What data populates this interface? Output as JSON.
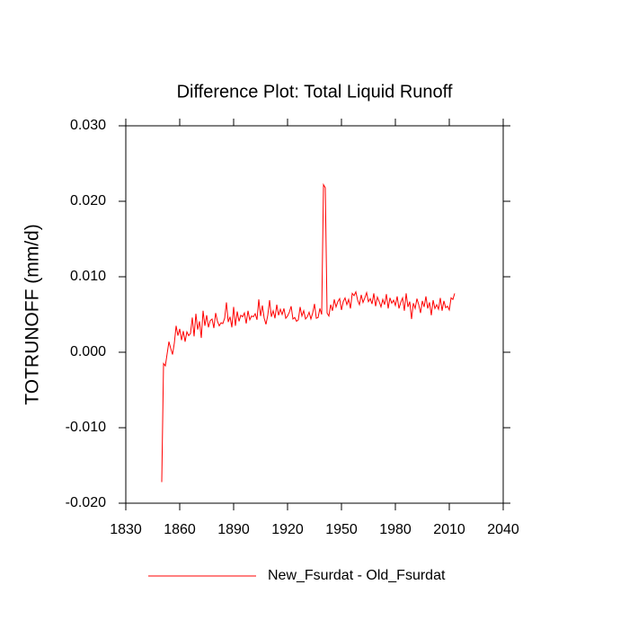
{
  "chart_data": {
    "type": "line",
    "title": "Difference Plot: Total Liquid Runoff",
    "y_label": "TOTRUNOFF  (mm/d)",
    "x": [
      1850,
      1851,
      1852,
      1853,
      1854,
      1855,
      1856,
      1857,
      1858,
      1859,
      1860,
      1861,
      1862,
      1863,
      1864,
      1865,
      1866,
      1867,
      1868,
      1869,
      1870,
      1871,
      1872,
      1873,
      1874,
      1875,
      1876,
      1877,
      1878,
      1879,
      1880,
      1881,
      1882,
      1883,
      1884,
      1885,
      1886,
      1887,
      1888,
      1889,
      1890,
      1891,
      1892,
      1893,
      1894,
      1895,
      1896,
      1897,
      1898,
      1899,
      1900,
      1901,
      1902,
      1903,
      1904,
      1905,
      1906,
      1907,
      1908,
      1909,
      1910,
      1911,
      1912,
      1913,
      1914,
      1915,
      1916,
      1917,
      1918,
      1919,
      1920,
      1921,
      1922,
      1923,
      1924,
      1925,
      1926,
      1927,
      1928,
      1929,
      1930,
      1931,
      1932,
      1933,
      1934,
      1935,
      1936,
      1937,
      1938,
      1939,
      1940,
      1941,
      1942,
      1943,
      1944,
      1945,
      1946,
      1947,
      1948,
      1949,
      1950,
      1951,
      1952,
      1953,
      1954,
      1955,
      1956,
      1957,
      1958,
      1959,
      1960,
      1961,
      1962,
      1963,
      1964,
      1965,
      1966,
      1967,
      1968,
      1969,
      1970,
      1971,
      1972,
      1973,
      1974,
      1975,
      1976,
      1977,
      1978,
      1979,
      1980,
      1981,
      1982,
      1983,
      1984,
      1985,
      1986,
      1987,
      1988,
      1989,
      1990,
      1991,
      1992,
      1993,
      1994,
      1995,
      1996,
      1997,
      1998,
      1999,
      2000,
      2001,
      2002,
      2003,
      2004,
      2005,
      2006,
      2007,
      2008,
      2009,
      2010,
      2011,
      2012,
      2013
    ],
    "series": [
      {
        "name": "New_Fsurdat - Old_Fsurdat",
        "color": "#ff0000",
        "values": [
          -0.0172,
          -0.0015,
          -0.0018,
          -0.0002,
          0.0014,
          0.0005,
          -0.0003,
          0.0012,
          0.0035,
          0.0022,
          0.0031,
          0.0016,
          0.0028,
          0.0014,
          0.0027,
          0.0022,
          0.0025,
          0.0046,
          0.0021,
          0.0051,
          0.003,
          0.0041,
          0.0019,
          0.0055,
          0.0035,
          0.0049,
          0.0033,
          0.0042,
          0.0044,
          0.0032,
          0.0052,
          0.0041,
          0.0035,
          0.0039,
          0.0038,
          0.0045,
          0.0066,
          0.004,
          0.0047,
          0.0033,
          0.006,
          0.0035,
          0.0054,
          0.0041,
          0.0049,
          0.0047,
          0.0052,
          0.0038,
          0.0055,
          0.0043,
          0.0048,
          0.0047,
          0.0051,
          0.0043,
          0.007,
          0.0048,
          0.0062,
          0.0045,
          0.0037,
          0.0049,
          0.0069,
          0.0047,
          0.0055,
          0.0045,
          0.0063,
          0.0049,
          0.0057,
          0.005,
          0.0058,
          0.0045,
          0.0048,
          0.0053,
          0.0061,
          0.0044,
          0.0046,
          0.0041,
          0.0043,
          0.006,
          0.0048,
          0.0055,
          0.0044,
          0.0047,
          0.0053,
          0.0044,
          0.0052,
          0.0064,
          0.0045,
          0.0046,
          0.0058,
          0.005,
          0.0222,
          0.0218,
          0.0052,
          0.0048,
          0.0063,
          0.0055,
          0.007,
          0.006,
          0.0067,
          0.0071,
          0.0056,
          0.0067,
          0.0072,
          0.0063,
          0.007,
          0.0058,
          0.0078,
          0.0075,
          0.008,
          0.0069,
          0.0063,
          0.0076,
          0.0066,
          0.0072,
          0.0079,
          0.0067,
          0.0071,
          0.0064,
          0.0078,
          0.0061,
          0.0073,
          0.0067,
          0.006,
          0.007,
          0.0063,
          0.0077,
          0.0058,
          0.0072,
          0.0065,
          0.0069,
          0.0062,
          0.0074,
          0.0058,
          0.0066,
          0.0072,
          0.0055,
          0.0078,
          0.006,
          0.0067,
          0.0044,
          0.0065,
          0.0058,
          0.0071,
          0.0063,
          0.0052,
          0.0068,
          0.006,
          0.0074,
          0.0058,
          0.0066,
          0.0049,
          0.0069,
          0.0058,
          0.0063,
          0.0057,
          0.0072,
          0.0055,
          0.0068,
          0.0059,
          0.0061,
          0.0056,
          0.0072,
          0.007,
          0.0078
        ]
      }
    ],
    "xlim": [
      1830,
      2040
    ],
    "xticks": [
      1830,
      1860,
      1890,
      1920,
      1950,
      1980,
      2010,
      2040
    ],
    "ylim": [
      -0.02,
      0.03
    ],
    "yticks": [
      {
        "value": -0.02,
        "label": "-0.020"
      },
      {
        "value": -0.01,
        "label": "-0.010"
      },
      {
        "value": 0,
        "label": "0.000"
      },
      {
        "value": 0.01,
        "label": "0.010"
      },
      {
        "value": 0.02,
        "label": "0.020"
      },
      {
        "value": 0.03,
        "label": "0.030"
      }
    ],
    "grid": false,
    "legend": "bottom"
  }
}
